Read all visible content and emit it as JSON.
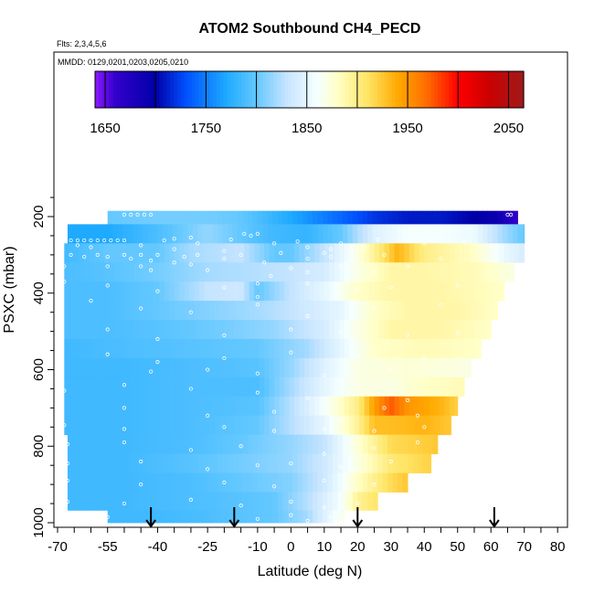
{
  "chart_data": {
    "type": "heatmap",
    "title": "ATOM2 Southbound CH4_PECD",
    "subtitle_flights": "Flts: 2,3,4,5,6",
    "subtitle_dates": "MMDD: 0129,0201,0203,0205,0210",
    "xlabel": "Latitude (deg N)",
    "ylabel": "PSXC (mbar)",
    "xlim": [
      -70,
      80
    ],
    "ylim": [
      1000,
      100
    ],
    "x_ticks": [
      -70,
      -55,
      -40,
      -25,
      -10,
      0,
      10,
      20,
      30,
      40,
      50,
      60,
      70,
      80
    ],
    "y_ticks": [
      200,
      400,
      600,
      800,
      1000
    ],
    "colorbar": {
      "range": [
        1640,
        2065
      ],
      "ticks": [
        1650,
        1750,
        1850,
        1950,
        2050
      ],
      "stops": [
        {
          "value": 1640,
          "color": "#8c1aff"
        },
        {
          "value": 1660,
          "color": "#3300cc"
        },
        {
          "value": 1700,
          "color": "#0000a8"
        },
        {
          "value": 1730,
          "color": "#0050ff"
        },
        {
          "value": 1770,
          "color": "#1eaaff"
        },
        {
          "value": 1800,
          "color": "#64c8ff"
        },
        {
          "value": 1830,
          "color": "#c6e4ff"
        },
        {
          "value": 1860,
          "color": "#f5ffff"
        },
        {
          "value": 1880,
          "color": "#ffffc8"
        },
        {
          "value": 1910,
          "color": "#ffe566"
        },
        {
          "value": 1940,
          "color": "#ffaa00"
        },
        {
          "value": 1970,
          "color": "#ff6a00"
        },
        {
          "value": 2000,
          "color": "#ff0000"
        },
        {
          "value": 2030,
          "color": "#cc0000"
        },
        {
          "value": 2065,
          "color": "#a01a1a"
        }
      ]
    },
    "flight_lat_arrows": [
      -42,
      -17,
      20,
      61
    ],
    "profiles": [
      {
        "p": 195,
        "xmin": -55,
        "xmax": 68,
        "x": [
          -55,
          -40,
          -25,
          -15,
          -5,
          5,
          15,
          25,
          35,
          45,
          55,
          62,
          68
        ],
        "v": [
          1800,
          1805,
          1805,
          1800,
          1780,
          1760,
          1740,
          1720,
          1710,
          1710,
          1700,
          1690,
          1660
        ]
      },
      {
        "p": 245,
        "xmin": -67,
        "xmax": 70,
        "x": [
          -67,
          -55,
          -40,
          -25,
          -15,
          -5,
          5,
          15,
          25,
          35,
          45,
          55,
          65,
          70
        ],
        "v": [
          1770,
          1770,
          1790,
          1815,
          1800,
          1785,
          1780,
          1800,
          1845,
          1860,
          1860,
          1855,
          1815,
          1800
        ]
      },
      {
        "p": 295,
        "xmin": -68,
        "xmax": 70,
        "x": [
          -68,
          -55,
          -40,
          -30,
          -15,
          -5,
          0,
          10,
          20,
          26,
          32,
          40,
          55,
          65,
          70
        ],
        "v": [
          1785,
          1800,
          1800,
          1820,
          1830,
          1800,
          1800,
          1830,
          1870,
          1900,
          1935,
          1900,
          1880,
          1850,
          1840
        ]
      },
      {
        "p": 345,
        "xmin": -68,
        "xmax": 67,
        "x": [
          -68,
          -55,
          -40,
          -25,
          -10,
          0,
          10,
          20,
          30,
          40,
          55,
          67
        ],
        "v": [
          1790,
          1795,
          1805,
          1820,
          1825,
          1830,
          1840,
          1870,
          1890,
          1890,
          1885,
          1870
        ]
      },
      {
        "p": 395,
        "xmin": -68,
        "xmax": 64,
        "x": [
          -68,
          -55,
          -40,
          -25,
          -15,
          -10,
          0,
          10,
          20,
          30,
          45,
          64
        ],
        "v": [
          1790,
          1790,
          1800,
          1830,
          1835,
          1800,
          1830,
          1850,
          1880,
          1890,
          1890,
          1880
        ]
      },
      {
        "p": 445,
        "xmin": -68,
        "xmax": 62,
        "x": [
          -68,
          -55,
          -40,
          -25,
          -10,
          0,
          15,
          25,
          35,
          50,
          62
        ],
        "v": [
          1790,
          1790,
          1800,
          1810,
          1820,
          1830,
          1850,
          1880,
          1890,
          1890,
          1880
        ]
      },
      {
        "p": 495,
        "xmin": -68,
        "xmax": 60,
        "x": [
          -68,
          -55,
          -40,
          -20,
          -5,
          10,
          20,
          30,
          45,
          60
        ],
        "v": [
          1790,
          1790,
          1795,
          1805,
          1815,
          1840,
          1870,
          1890,
          1890,
          1880
        ]
      },
      {
        "p": 545,
        "xmin": -68,
        "xmax": 57,
        "x": [
          -68,
          -50,
          -30,
          -10,
          5,
          15,
          25,
          40,
          57
        ],
        "v": [
          1785,
          1790,
          1795,
          1800,
          1820,
          1850,
          1880,
          1885,
          1880
        ]
      },
      {
        "p": 595,
        "xmin": -68,
        "xmax": 54,
        "x": [
          -68,
          -50,
          -30,
          -10,
          0,
          10,
          20,
          35,
          54
        ],
        "v": [
          1785,
          1785,
          1790,
          1795,
          1815,
          1845,
          1870,
          1875,
          1870
        ]
      },
      {
        "p": 645,
        "xmin": -68,
        "xmax": 52,
        "x": [
          -68,
          -50,
          -30,
          -10,
          0,
          10,
          20,
          30,
          40,
          52
        ],
        "v": [
          1785,
          1785,
          1790,
          1790,
          1820,
          1850,
          1870,
          1870,
          1880,
          1885
        ]
      },
      {
        "p": 695,
        "xmin": -68,
        "xmax": 50,
        "x": [
          -68,
          -50,
          -30,
          -10,
          0,
          10,
          20,
          25,
          30,
          35,
          45,
          50
        ],
        "v": [
          1785,
          1785,
          1790,
          1795,
          1825,
          1860,
          1900,
          1945,
          1975,
          1950,
          1935,
          1920
        ]
      },
      {
        "p": 745,
        "xmin": -68,
        "xmax": 48,
        "x": [
          -68,
          -50,
          -30,
          -10,
          0,
          10,
          20,
          25,
          30,
          40,
          48
        ],
        "v": [
          1785,
          1785,
          1790,
          1800,
          1825,
          1850,
          1895,
          1930,
          1930,
          1935,
          1925
        ]
      },
      {
        "p": 795,
        "xmin": -67,
        "xmax": 44,
        "x": [
          -67,
          -50,
          -30,
          -15,
          0,
          10,
          20,
          30,
          44
        ],
        "v": [
          1785,
          1785,
          1790,
          1800,
          1815,
          1830,
          1875,
          1915,
          1925
        ]
      },
      {
        "p": 845,
        "xmin": -67,
        "xmax": 42,
        "x": [
          -67,
          -50,
          -30,
          -15,
          0,
          10,
          20,
          30,
          42
        ],
        "v": [
          1785,
          1785,
          1795,
          1805,
          1815,
          1835,
          1870,
          1905,
          1920
        ]
      },
      {
        "p": 895,
        "xmin": -67,
        "xmax": 35,
        "x": [
          -67,
          -50,
          -30,
          -15,
          0,
          10,
          20,
          30,
          35
        ],
        "v": [
          1785,
          1785,
          1790,
          1800,
          1810,
          1835,
          1880,
          1915,
          1925
        ]
      },
      {
        "p": 945,
        "xmin": -67,
        "xmax": 26,
        "x": [
          -67,
          -50,
          -30,
          -15,
          -5,
          5,
          15,
          20,
          26
        ],
        "v": [
          1785,
          1785,
          1790,
          1795,
          1800,
          1825,
          1860,
          1895,
          1910
        ]
      },
      {
        "p": 990,
        "xmin": -55,
        "xmax": 16,
        "x": [
          -55,
          -40,
          -25,
          -15,
          -5,
          5,
          10,
          16
        ],
        "v": [
          1785,
          1785,
          1790,
          1795,
          1800,
          1820,
          1845,
          1870
        ]
      }
    ],
    "sample_points": [
      [
        -50,
        195
      ],
      [
        -48,
        195
      ],
      [
        -46,
        195
      ],
      [
        -44,
        195
      ],
      [
        -42,
        195
      ],
      [
        65,
        195
      ],
      [
        66,
        195
      ],
      [
        -10,
        245
      ],
      [
        -12,
        250
      ],
      [
        -14,
        245
      ],
      [
        -30,
        255
      ],
      [
        -35,
        258
      ],
      [
        -38,
        262
      ],
      [
        -66,
        262
      ],
      [
        -64,
        262
      ],
      [
        -62,
        262
      ],
      [
        -60,
        262
      ],
      [
        -58,
        262
      ],
      [
        -56,
        262
      ],
      [
        -54,
        262
      ],
      [
        -52,
        262
      ],
      [
        -50,
        262
      ],
      [
        -64,
        275
      ],
      [
        -60,
        280
      ],
      [
        -45,
        275
      ],
      [
        -35,
        285
      ],
      [
        -28,
        270
      ],
      [
        -20,
        290
      ],
      [
        -18,
        260
      ],
      [
        -5,
        270
      ],
      [
        -3,
        295
      ],
      [
        2,
        265
      ],
      [
        5,
        280
      ],
      [
        10,
        295
      ],
      [
        12,
        285
      ],
      [
        15,
        270
      ],
      [
        22,
        280
      ],
      [
        26,
        260
      ],
      [
        40,
        270
      ],
      [
        52,
        265
      ],
      [
        60,
        280
      ],
      [
        -66,
        300
      ],
      [
        -62,
        305
      ],
      [
        -58,
        300
      ],
      [
        -55,
        305
      ],
      [
        -50,
        300
      ],
      [
        -48,
        310
      ],
      [
        -45,
        300
      ],
      [
        -42,
        315
      ],
      [
        -40,
        300
      ],
      [
        -35,
        320
      ],
      [
        -32,
        305
      ],
      [
        -28,
        300
      ],
      [
        -20,
        310
      ],
      [
        -15,
        300
      ],
      [
        -8,
        320
      ],
      [
        5,
        310
      ],
      [
        12,
        305
      ],
      [
        28,
        300
      ],
      [
        45,
        310
      ],
      [
        -68,
        330
      ],
      [
        -55,
        330
      ],
      [
        -45,
        330
      ],
      [
        -42,
        340
      ],
      [
        -30,
        325
      ],
      [
        -25,
        340
      ],
      [
        -6,
        355
      ],
      [
        0,
        335
      ],
      [
        5,
        345
      ],
      [
        15,
        330
      ],
      [
        25,
        345
      ],
      [
        35,
        330
      ],
      [
        -68,
        370
      ],
      [
        -55,
        380
      ],
      [
        -40,
        395
      ],
      [
        -20,
        385
      ],
      [
        -10,
        375
      ],
      [
        -10,
        410
      ],
      [
        5,
        375
      ],
      [
        20,
        390
      ],
      [
        30,
        385
      ],
      [
        50,
        380
      ],
      [
        -60,
        420
      ],
      [
        -45,
        440
      ],
      [
        -30,
        450
      ],
      [
        -10,
        430
      ],
      [
        5,
        460
      ],
      [
        25,
        440
      ],
      [
        45,
        430
      ],
      [
        -55,
        495
      ],
      [
        -40,
        520
      ],
      [
        -20,
        510
      ],
      [
        0,
        495
      ],
      [
        15,
        500
      ],
      [
        35,
        510
      ],
      [
        50,
        505
      ],
      [
        -55,
        560
      ],
      [
        -40,
        580
      ],
      [
        -20,
        570
      ],
      [
        0,
        555
      ],
      [
        20,
        565
      ],
      [
        40,
        570
      ],
      [
        -42,
        605
      ],
      [
        -25,
        600
      ],
      [
        -10,
        610
      ],
      [
        10,
        615
      ],
      [
        30,
        600
      ],
      [
        -68,
        655
      ],
      [
        -50,
        640
      ],
      [
        -30,
        650
      ],
      [
        -10,
        660
      ],
      [
        5,
        675
      ],
      [
        20,
        650
      ],
      [
        35,
        680
      ],
      [
        -50,
        700
      ],
      [
        -25,
        720
      ],
      [
        -5,
        710
      ],
      [
        15,
        730
      ],
      [
        28,
        700
      ],
      [
        38,
        720
      ],
      [
        -68,
        745
      ],
      [
        -50,
        755
      ],
      [
        -20,
        750
      ],
      [
        -5,
        760
      ],
      [
        10,
        755
      ],
      [
        25,
        760
      ],
      [
        40,
        750
      ],
      [
        -67,
        795
      ],
      [
        -50,
        790
      ],
      [
        -30,
        810
      ],
      [
        -15,
        800
      ],
      [
        10,
        820
      ],
      [
        25,
        805
      ],
      [
        38,
        790
      ],
      [
        -67,
        845
      ],
      [
        -45,
        840
      ],
      [
        -25,
        860
      ],
      [
        -10,
        850
      ],
      [
        0,
        845
      ],
      [
        15,
        855
      ],
      [
        30,
        840
      ],
      [
        -67,
        890
      ],
      [
        -45,
        900
      ],
      [
        -20,
        895
      ],
      [
        -5,
        905
      ],
      [
        10,
        890
      ],
      [
        25,
        900
      ],
      [
        -67,
        945
      ],
      [
        -50,
        950
      ],
      [
        -30,
        940
      ],
      [
        -15,
        955
      ],
      [
        0,
        945
      ],
      [
        10,
        960
      ],
      [
        20,
        950
      ],
      [
        -55,
        985
      ],
      [
        -10,
        990
      ],
      [
        0,
        980
      ],
      [
        5,
        995
      ],
      [
        12,
        985
      ],
      [
        15,
        1000
      ]
    ]
  }
}
